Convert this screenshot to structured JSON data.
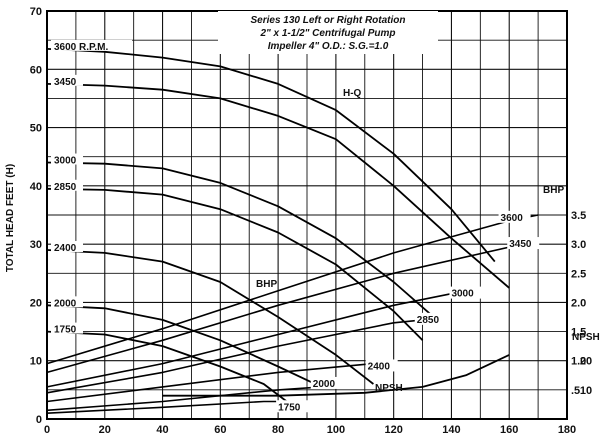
{
  "chart_data": {
    "type": "line",
    "title_lines": [
      "Series 130 Left or Right Rotation",
      "2\" x 1-1/2\" Centrifugal Pump",
      "Impeller 4\" O.D.: S.G.=1.0"
    ],
    "xlabel": "",
    "ylabel": "TOTAL HEAD FEET (H)",
    "right_axis_label": "BHP",
    "npsh_axis_label": "NPSH",
    "xlim": [
      0,
      180
    ],
    "ylim": [
      0,
      70
    ],
    "xticks": [
      "0",
      "20",
      "40",
      "60",
      "80",
      "100",
      "120",
      "140",
      "160",
      "180"
    ],
    "yticks": [
      "0",
      "10",
      "20",
      "30",
      "40",
      "50",
      "60",
      "70"
    ],
    "bhp_ticks": [
      {
        "label": ".5",
        "y": 5
      },
      {
        "label": "1.0",
        "y": 10
      },
      {
        "label": "1.5",
        "y": 15
      },
      {
        "label": "2.0",
        "y": 20
      },
      {
        "label": "2.5",
        "y": 25
      },
      {
        "label": "3.0",
        "y": 30
      },
      {
        "label": "3.5",
        "y": 35
      }
    ],
    "npsh_ticks": [
      {
        "label": "10",
        "y": 5
      },
      {
        "label": "20",
        "y": 10
      }
    ],
    "hq_label": "H-Q",
    "bhp_label": "BHP",
    "npsh_label": "NPSH",
    "head_curves": [
      {
        "rpm": "3600 R.P.M.",
        "points": [
          [
            0,
            63.5
          ],
          [
            20,
            63
          ],
          [
            40,
            62
          ],
          [
            60,
            60.5
          ],
          [
            80,
            57.5
          ],
          [
            100,
            53
          ],
          [
            120,
            45.5
          ],
          [
            140,
            36
          ],
          [
            155,
            27
          ]
        ]
      },
      {
        "rpm": "3450",
        "points": [
          [
            0,
            57.5
          ],
          [
            20,
            57.2
          ],
          [
            40,
            56.5
          ],
          [
            60,
            55
          ],
          [
            80,
            52
          ],
          [
            100,
            48
          ],
          [
            120,
            40
          ],
          [
            140,
            31
          ],
          [
            160,
            22.5
          ]
        ]
      },
      {
        "rpm": "3000",
        "points": [
          [
            0,
            44
          ],
          [
            20,
            43.8
          ],
          [
            40,
            43
          ],
          [
            60,
            40.5
          ],
          [
            80,
            36.5
          ],
          [
            100,
            31
          ],
          [
            120,
            23.5
          ],
          [
            135,
            17
          ]
        ]
      },
      {
        "rpm": "2850",
        "points": [
          [
            0,
            39.5
          ],
          [
            20,
            39.3
          ],
          [
            40,
            38.5
          ],
          [
            60,
            36
          ],
          [
            80,
            32
          ],
          [
            100,
            26.5
          ],
          [
            120,
            18.5
          ],
          [
            130,
            13.5
          ]
        ]
      },
      {
        "rpm": "2400",
        "points": [
          [
            0,
            29
          ],
          [
            20,
            28.5
          ],
          [
            40,
            27
          ],
          [
            60,
            23.5
          ],
          [
            80,
            17.5
          ],
          [
            100,
            11
          ],
          [
            113,
            6
          ]
        ]
      },
      {
        "rpm": "2000",
        "points": [
          [
            0,
            19.5
          ],
          [
            20,
            19
          ],
          [
            40,
            17
          ],
          [
            60,
            13.5
          ],
          [
            80,
            9
          ],
          [
            95,
            5.5
          ]
        ]
      },
      {
        "rpm": "1750",
        "points": [
          [
            0,
            15
          ],
          [
            20,
            14.5
          ],
          [
            40,
            12.5
          ],
          [
            60,
            9
          ],
          [
            75,
            6
          ],
          [
            83,
            3
          ]
        ]
      }
    ],
    "bhp_curves": [
      {
        "rpm": "3600",
        "points": [
          [
            0,
            9.5
          ],
          [
            40,
            15.5
          ],
          [
            80,
            22
          ],
          [
            120,
            28.5
          ],
          [
            160,
            34
          ],
          [
            170,
            35
          ]
        ]
      },
      {
        "rpm": "3450",
        "points": [
          [
            0,
            8
          ],
          [
            40,
            13.5
          ],
          [
            80,
            19.5
          ],
          [
            120,
            25
          ],
          [
            160,
            29.5
          ],
          [
            165,
            30
          ]
        ]
      },
      {
        "rpm": "3000",
        "points": [
          [
            0,
            5.5
          ],
          [
            40,
            9.5
          ],
          [
            80,
            14.5
          ],
          [
            120,
            19.5
          ],
          [
            140,
            21.5
          ]
        ]
      },
      {
        "rpm": "2850",
        "points": [
          [
            0,
            4.5
          ],
          [
            40,
            8
          ],
          [
            80,
            12.5
          ],
          [
            120,
            16.5
          ],
          [
            130,
            17
          ]
        ]
      },
      {
        "rpm": "2400",
        "points": [
          [
            0,
            3
          ],
          [
            40,
            5.5
          ],
          [
            80,
            8
          ],
          [
            113,
            9.5
          ]
        ]
      },
      {
        "rpm": "2000",
        "points": [
          [
            0,
            1.5
          ],
          [
            40,
            3
          ],
          [
            80,
            5
          ],
          [
            95,
            5.5
          ]
        ]
      },
      {
        "rpm": "1750",
        "points": [
          [
            0,
            1
          ],
          [
            40,
            2
          ],
          [
            75,
            3
          ],
          [
            83,
            3
          ]
        ]
      }
    ],
    "npsh_curve": {
      "points": [
        [
          40,
          4
        ],
        [
          80,
          4
        ],
        [
          110,
          4.5
        ],
        [
          130,
          5.5
        ],
        [
          145,
          7.5
        ],
        [
          160,
          11
        ]
      ]
    },
    "bhp_end_labels": [
      {
        "text": "3600",
        "x": 157,
        "y": 34
      },
      {
        "text": "3450",
        "x": 160,
        "y": 29.5
      },
      {
        "text": "3000",
        "x": 140,
        "y": 21
      },
      {
        "text": "2850",
        "x": 128,
        "y": 16.5
      },
      {
        "text": "2400",
        "x": 111,
        "y": 8.5
      },
      {
        "text": "2000",
        "x": 92,
        "y": 5.5
      },
      {
        "text": "1750",
        "x": 80,
        "y": 1.5
      }
    ],
    "grid": true
  }
}
